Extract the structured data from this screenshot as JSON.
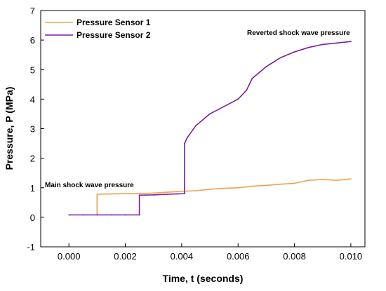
{
  "chart_data": {
    "type": "line",
    "xlabel": "Time, t (seconds)",
    "ylabel": "Pressure, P (MPa)",
    "xlim": [
      -0.001,
      0.0105
    ],
    "ylim": [
      -1,
      7
    ],
    "x_ticks": [
      "0.000",
      "0.002",
      "0.004",
      "0.006",
      "0.008",
      "0.010"
    ],
    "y_ticks": [
      "-1",
      "0",
      "1",
      "2",
      "3",
      "4",
      "5",
      "6",
      "7"
    ],
    "x_tick_values": [
      0,
      0.002,
      0.004,
      0.006,
      0.008,
      0.01
    ],
    "y_tick_values": [
      -1,
      0,
      1,
      2,
      3,
      4,
      5,
      6,
      7
    ],
    "legend_position": "top-left",
    "series": [
      {
        "name": "Pressure Sensor 1",
        "color": "#f0a050",
        "x": [
          0.001,
          0.001,
          0.0015,
          0.002,
          0.0025,
          0.003,
          0.0035,
          0.004,
          0.0045,
          0.005,
          0.0055,
          0.006,
          0.0065,
          0.007,
          0.0075,
          0.008,
          0.0085,
          0.009,
          0.0095,
          0.01
        ],
        "values": [
          0.1,
          0.78,
          0.79,
          0.8,
          0.8,
          0.82,
          0.85,
          0.88,
          0.9,
          0.95,
          0.98,
          1.0,
          1.05,
          1.08,
          1.12,
          1.15,
          1.25,
          1.28,
          1.25,
          1.3
        ]
      },
      {
        "name": "Pressure Sensor 2",
        "color": "#7a1fa2",
        "x": [
          0.0,
          0.0005,
          0.001,
          0.0015,
          0.002,
          0.0025,
          0.0025,
          0.003,
          0.0035,
          0.0041,
          0.0041,
          0.0042,
          0.0045,
          0.005,
          0.0055,
          0.006,
          0.0063,
          0.0065,
          0.007,
          0.0075,
          0.008,
          0.0085,
          0.009,
          0.0095,
          0.01
        ],
        "values": [
          0.08,
          0.08,
          0.08,
          0.08,
          0.08,
          0.08,
          0.75,
          0.76,
          0.78,
          0.8,
          2.5,
          2.7,
          3.1,
          3.5,
          3.75,
          4.0,
          4.3,
          4.7,
          5.1,
          5.4,
          5.6,
          5.75,
          5.85,
          5.9,
          5.95
        ]
      }
    ],
    "annotations": [
      {
        "text": "Main shock wave pressure"
      },
      {
        "text": "Reverted shock wave pressure"
      }
    ]
  }
}
